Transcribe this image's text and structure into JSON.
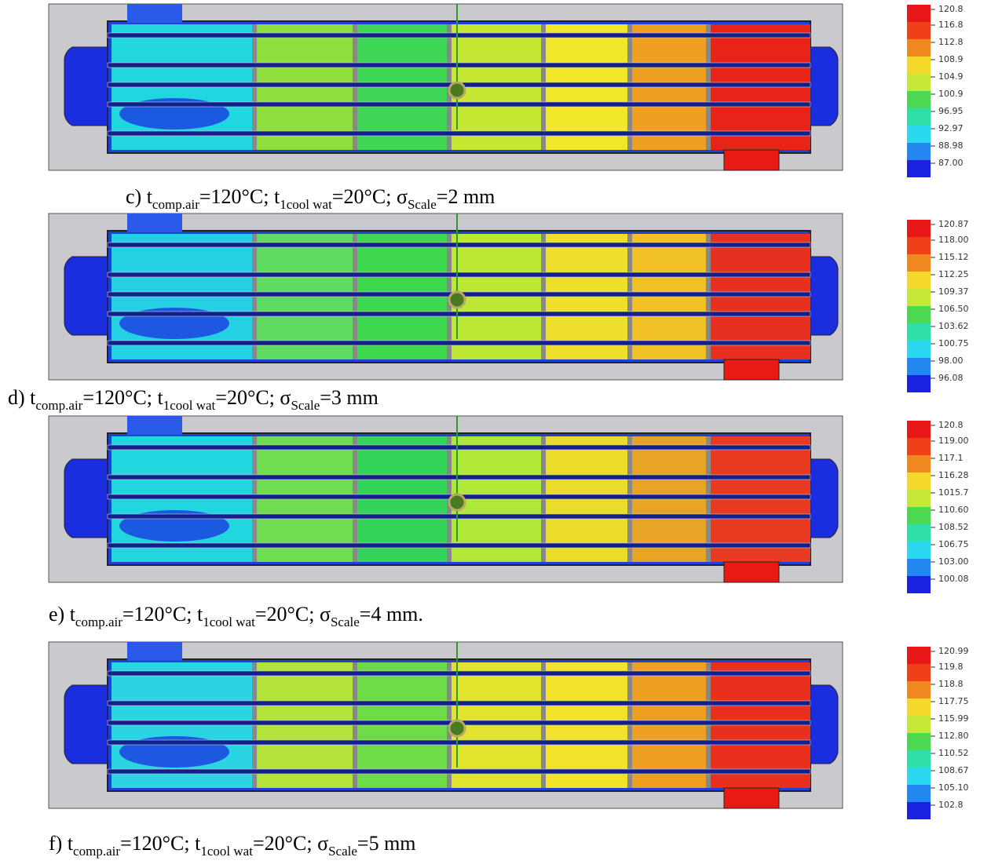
{
  "panels": [
    {
      "caption": [
        "c) t",
        "comp.air",
        "=120°C; t",
        "1cool wat",
        "=20°C; σ",
        "Scale",
        "=2 mm"
      ],
      "legend": [
        "120.8",
        "116.8",
        "112.8",
        "108.9",
        "104.9",
        "100.9",
        "96.95",
        "92.97",
        "88.98",
        "87.00"
      ]
    },
    {
      "caption": [
        "d) t",
        "comp.air",
        "=120°C; t",
        "1cool wat",
        "=20°C; σ",
        "Scale",
        "=3 mm"
      ],
      "legend": [
        "120.87",
        "118.00",
        "115.12",
        "112.25",
        "109.37",
        "106.50",
        "103.62",
        "100.75",
        "98.00",
        "96.08"
      ]
    },
    {
      "caption": [
        "e) t",
        "comp.air",
        "=120°C; t",
        "1cool wat",
        "=20°C; σ",
        "Scale",
        "=4 mm."
      ],
      "legend": [
        "120.8",
        "119.00",
        "117.1",
        "116.28",
        "1015.7",
        "110.60",
        "108.52",
        "106.75",
        "103.00",
        "100.08"
      ]
    },
    {
      "caption": [
        "f) t",
        "comp.air",
        "=120°C; t",
        "1cool wat",
        "=20°C; σ",
        "Scale",
        "=5 mm"
      ],
      "legend": [
        "120.99",
        "119.8",
        "118.8",
        "117.75",
        "115.99",
        "112.80",
        "110.52",
        "108.67",
        "105.10",
        "102.8"
      ]
    }
  ]
}
